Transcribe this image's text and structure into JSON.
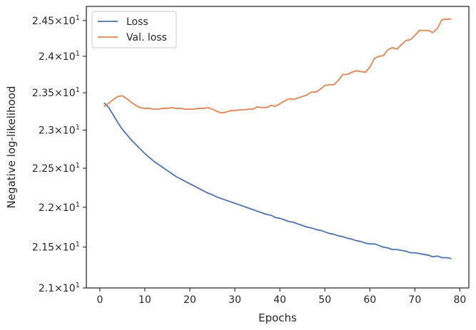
{
  "chart_data": {
    "type": "line",
    "title": "",
    "xlabel": "Epochs",
    "ylabel": "Negative log-likelihood",
    "xlim": [
      -3,
      82
    ],
    "ylim": [
      21.0,
      24.7
    ],
    "y_scale": "log",
    "grid": false,
    "legend_position": "top-left",
    "x_ticks": [
      0,
      10,
      20,
      30,
      40,
      50,
      60,
      70,
      80
    ],
    "x_tick_labels": [
      "0",
      "10",
      "20",
      "30",
      "40",
      "50",
      "60",
      "70",
      "80"
    ],
    "y_ticks": [
      {
        "value": 21.0,
        "mantissa": "2.1",
        "exponent": "1"
      },
      {
        "value": 21.5,
        "mantissa": "2.15",
        "exponent": "1"
      },
      {
        "value": 22.0,
        "mantissa": "2.2",
        "exponent": "1"
      },
      {
        "value": 22.5,
        "mantissa": "2.25",
        "exponent": "1"
      },
      {
        "value": 23.0,
        "mantissa": "2.3",
        "exponent": "1"
      },
      {
        "value": 23.5,
        "mantissa": "2.35",
        "exponent": "1"
      },
      {
        "value": 24.0,
        "mantissa": "2.4",
        "exponent": "1"
      },
      {
        "value": 24.5,
        "mantissa": "2.45",
        "exponent": "1"
      }
    ],
    "y_tick_times": "×",
    "y_tick_base": "10",
    "series": [
      {
        "name": "Loss",
        "color": "#4c72b0",
        "x": [
          1,
          2,
          3,
          4,
          5,
          6,
          7,
          8,
          9,
          10,
          11,
          12,
          13,
          14,
          15,
          16,
          17,
          18,
          19,
          20,
          21,
          22,
          23,
          24,
          25,
          26,
          27,
          28,
          29,
          30,
          31,
          32,
          33,
          34,
          35,
          36,
          37,
          38,
          39,
          40,
          41,
          42,
          43,
          44,
          45,
          46,
          47,
          48,
          49,
          50,
          51,
          52,
          53,
          54,
          55,
          56,
          57,
          58,
          59,
          60,
          61,
          62,
          63,
          64,
          65,
          66,
          67,
          68,
          69,
          70,
          71,
          72,
          73,
          74,
          75,
          76,
          77,
          78
        ],
        "y": [
          23.36,
          23.3,
          23.2,
          23.1,
          23.01,
          22.94,
          22.87,
          22.81,
          22.75,
          22.69,
          22.64,
          22.59,
          22.55,
          22.51,
          22.47,
          22.43,
          22.39,
          22.36,
          22.33,
          22.3,
          22.27,
          22.24,
          22.21,
          22.18,
          22.16,
          22.13,
          22.11,
          22.09,
          22.07,
          22.05,
          22.03,
          22.01,
          21.99,
          21.97,
          21.95,
          21.93,
          21.91,
          21.9,
          21.87,
          21.86,
          21.84,
          21.82,
          21.81,
          21.79,
          21.77,
          21.75,
          21.74,
          21.72,
          21.71,
          21.69,
          21.67,
          21.66,
          21.64,
          21.63,
          21.61,
          21.6,
          21.58,
          21.57,
          21.55,
          21.54,
          21.54,
          21.52,
          21.5,
          21.49,
          21.47,
          21.47,
          21.46,
          21.45,
          21.43,
          21.43,
          21.42,
          21.41,
          21.4,
          21.38,
          21.39,
          21.37,
          21.37,
          21.36
        ]
      },
      {
        "name": "Val. loss",
        "color": "#dd8452",
        "x": [
          1,
          2,
          3,
          4,
          5,
          6,
          7,
          8,
          9,
          10,
          11,
          12,
          13,
          14,
          15,
          16,
          17,
          18,
          19,
          20,
          21,
          22,
          23,
          24,
          25,
          26,
          27,
          28,
          29,
          30,
          31,
          32,
          33,
          34,
          35,
          36,
          37,
          38,
          39,
          40,
          41,
          42,
          43,
          44,
          45,
          46,
          47,
          48,
          49,
          50,
          51,
          52,
          53,
          54,
          55,
          56,
          57,
          58,
          59,
          60,
          61,
          62,
          63,
          64,
          65,
          66,
          67,
          68,
          69,
          70,
          71,
          72,
          73,
          74,
          75,
          76,
          77,
          78
        ],
        "y": [
          23.32,
          23.36,
          23.41,
          23.45,
          23.46,
          23.42,
          23.37,
          23.33,
          23.3,
          23.29,
          23.29,
          23.28,
          23.28,
          23.29,
          23.29,
          23.3,
          23.29,
          23.29,
          23.28,
          23.28,
          23.28,
          23.29,
          23.29,
          23.3,
          23.28,
          23.25,
          23.23,
          23.24,
          23.26,
          23.26,
          23.27,
          23.27,
          23.28,
          23.28,
          23.31,
          23.3,
          23.3,
          23.33,
          23.32,
          23.35,
          23.39,
          23.42,
          23.41,
          23.43,
          23.45,
          23.47,
          23.51,
          23.51,
          23.55,
          23.6,
          23.61,
          23.61,
          23.67,
          23.75,
          23.75,
          23.78,
          23.8,
          23.79,
          23.78,
          23.85,
          23.97,
          24.0,
          24.01,
          24.09,
          24.12,
          24.1,
          24.16,
          24.22,
          24.23,
          24.29,
          24.36,
          24.36,
          24.36,
          24.33,
          24.39,
          24.51,
          24.52,
          24.52
        ]
      }
    ]
  }
}
